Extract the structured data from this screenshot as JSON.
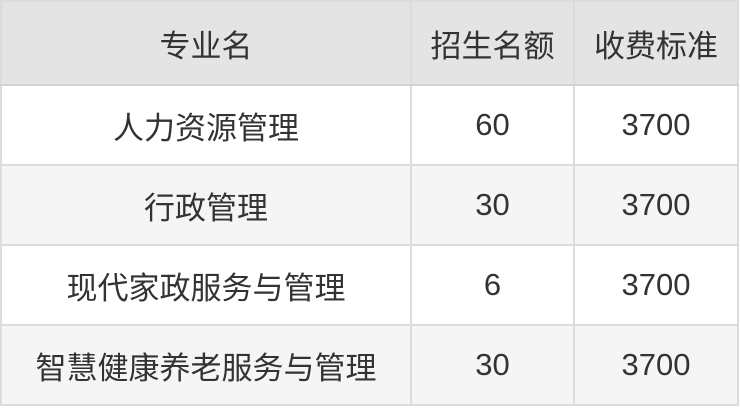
{
  "chart_data": {
    "type": "table",
    "title": "",
    "columns": [
      "专业名",
      "招生名额",
      "收费标准"
    ],
    "rows": [
      [
        "人力资源管理",
        "60",
        "3700"
      ],
      [
        "行政管理",
        "30",
        "3700"
      ],
      [
        "现代家政服务与管理",
        "6",
        "3700"
      ],
      [
        "智慧健康养老服务与管理",
        "30",
        "3700"
      ]
    ]
  },
  "table": {
    "header": {
      "major": "专业名",
      "quota": "招生名额",
      "fee": "收费标准"
    },
    "rows": [
      {
        "major": "人力资源管理",
        "quota": "60",
        "fee": "3700"
      },
      {
        "major": "行政管理",
        "quota": "30",
        "fee": "3700"
      },
      {
        "major": "现代家政服务与管理",
        "quota": "6",
        "fee": "3700"
      },
      {
        "major": "智慧健康养老服务与管理",
        "quota": "30",
        "fee": "3700"
      }
    ],
    "colors": {
      "header_bg": "#e4e4e4",
      "row_bg": "#ffffff",
      "row_alt_bg": "#f5f5f5",
      "border": "#dcdcdc",
      "text": "#333333"
    }
  }
}
